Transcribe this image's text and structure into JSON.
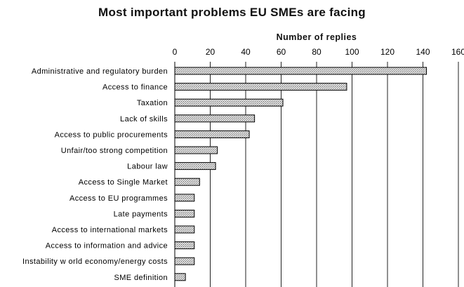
{
  "chart_data": {
    "type": "bar",
    "orientation": "horizontal",
    "title": "Most important problems EU SMEs are facing",
    "xlabel": "Number of replies",
    "ylabel": "",
    "xlim": [
      0,
      160
    ],
    "xticks": [
      0,
      20,
      40,
      60,
      80,
      100,
      120,
      140,
      160
    ],
    "grid": true,
    "categories": [
      "Administrative and regulatory burden",
      "Access to finance",
      "Taxation",
      "Lack of skills",
      "Access to public procurements",
      "Unfair/too strong competition",
      "Labour law",
      "Access to Single Market",
      "Access to EU programmes",
      "Late payments",
      "Access to international markets",
      "Access to information and advice",
      "Instability w orld economy/energy costs",
      "SME definition"
    ],
    "values": [
      142,
      97,
      61,
      45,
      42,
      24,
      23,
      14,
      11,
      11,
      11,
      11,
      11,
      6
    ]
  }
}
